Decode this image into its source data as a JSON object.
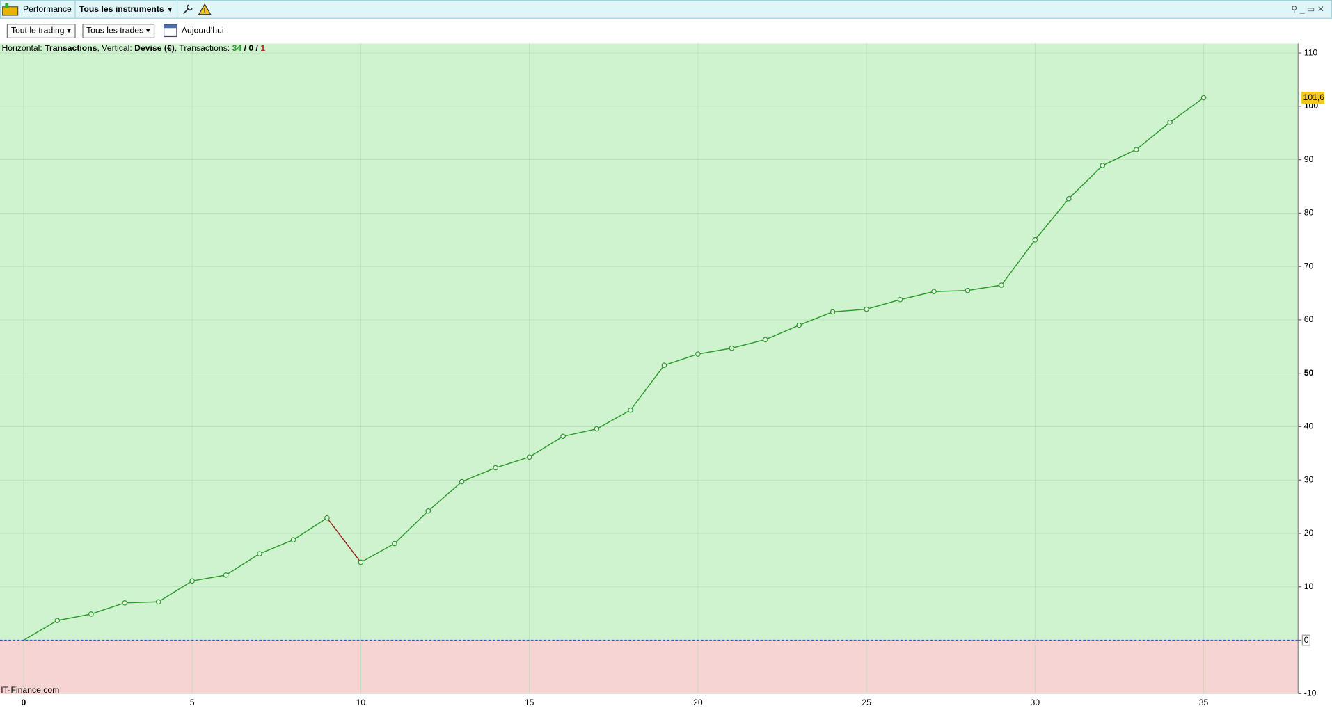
{
  "header": {
    "title": "Performance",
    "instrument": "Tous les instruments"
  },
  "toolbar": {
    "period": "Tout le trading",
    "trades": "Tous les trades",
    "date": "Aujourd'hui"
  },
  "info": {
    "horizontal_label": "Horizontal:",
    "horizontal": "Transactions",
    "vertical_label": ", Vertical:",
    "vertical": "Devise (€)",
    "count_label": ", Transactions:",
    "wins": 34,
    "separator": "/",
    "even": 0,
    "losses": 1
  },
  "footer": "IT-Finance.com",
  "chart_data": {
    "type": "line",
    "x": [
      0,
      1,
      2,
      3,
      4,
      5,
      6,
      7,
      8,
      9,
      10,
      11,
      12,
      13,
      14,
      15,
      16,
      17,
      18,
      19,
      20,
      21,
      22,
      23,
      24,
      25,
      26,
      27,
      28,
      29,
      30,
      31,
      32,
      33,
      34,
      35
    ],
    "series": [
      {
        "name": null,
        "color": "#2e9a2e",
        "loss_color": "#a02020",
        "values": [
          0,
          3.7,
          4.9,
          7.0,
          7.2,
          11.1,
          12.2,
          16.2,
          18.8,
          22.9,
          14.6,
          18.1,
          24.2,
          29.7,
          32.3,
          34.3,
          38.2,
          39.6,
          43.1,
          51.5,
          53.6,
          54.7,
          56.3,
          59.0,
          61.5,
          62.0,
          63.8,
          65.3,
          65.5,
          66.5,
          75.0,
          82.7,
          88.9,
          91.9,
          97.0,
          101.6
        ],
        "value_labels": [
          null,
          null,
          null,
          null,
          null,
          null,
          null,
          null,
          null,
          null,
          null,
          null,
          null,
          null,
          null,
          null,
          null,
          null,
          null,
          null,
          null,
          null,
          null,
          null,
          null,
          null,
          null,
          null,
          null,
          null,
          null,
          null,
          null,
          null,
          null,
          "101,6"
        ]
      }
    ],
    "xlim": [
      -0.7,
      37.8
    ],
    "xticks": [
      0,
      5,
      10,
      15,
      20,
      25,
      30,
      35
    ],
    "ylim": [
      -10,
      111.8
    ],
    "yticks": [
      -10,
      0,
      10,
      20,
      30,
      40,
      50,
      60,
      70,
      80,
      90,
      100,
      110
    ],
    "grid": true,
    "positive_color": "#cff3cf",
    "negative_color": "#f6d4d4"
  }
}
